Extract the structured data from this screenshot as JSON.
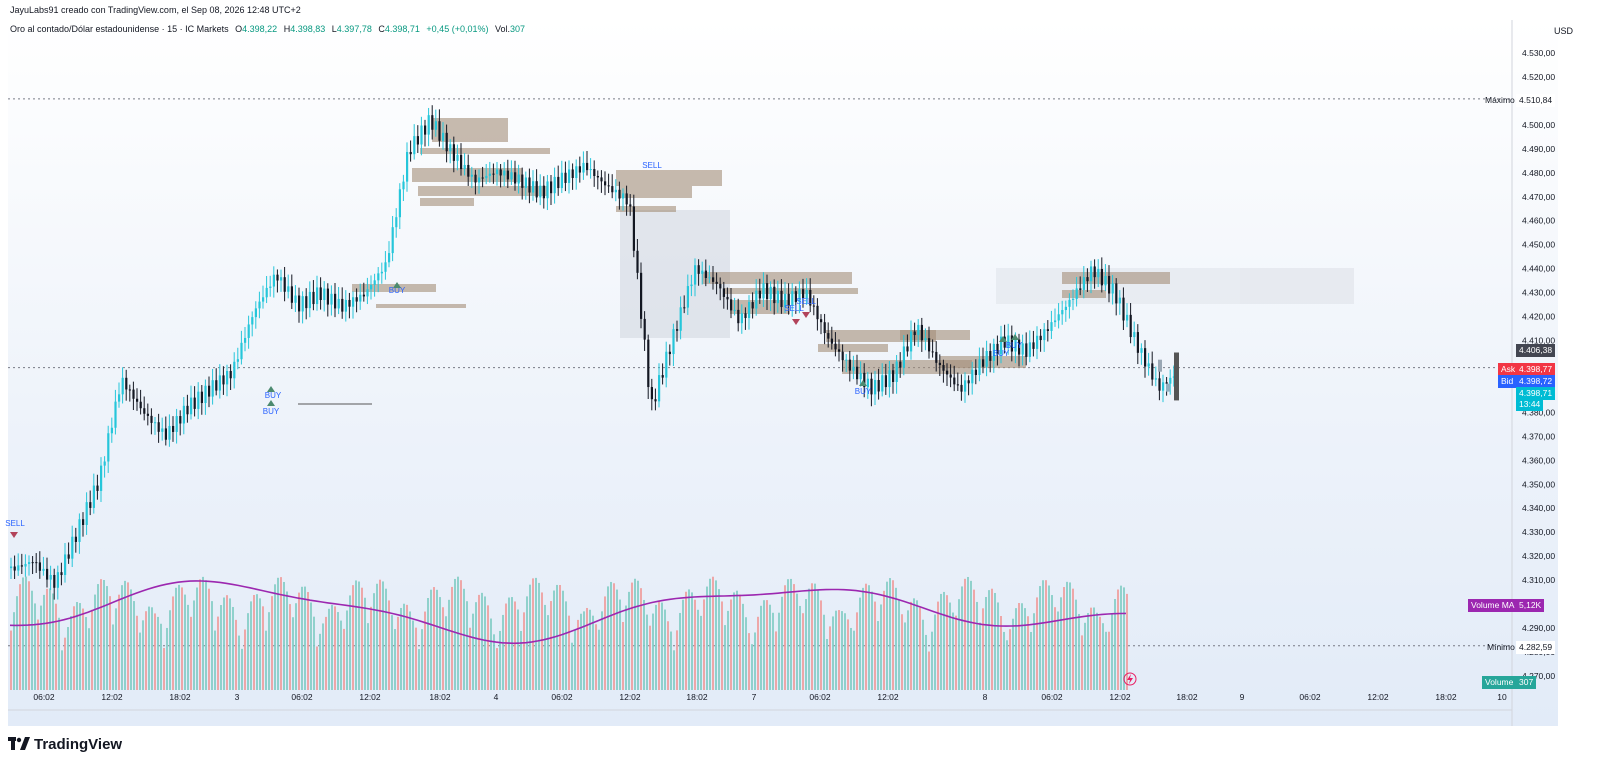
{
  "header": {
    "published": "JayuLabs91 creado con TradingView.com, el Sep 08, 2026 12:48 UTC+2"
  },
  "symbol": {
    "name": "Oro al contado/Dólar estadounidense · 15 · IC Markets",
    "o_label": "O",
    "o": "4.398,22",
    "h_label": "H",
    "h": "4.398,83",
    "l_label": "L",
    "l": "4.397,78",
    "c_label": "C",
    "c": "4.398,71",
    "change": "+0,45 (+0,01%)",
    "vol_label": "Vol.",
    "vol": "307"
  },
  "price_axis": {
    "currency": "USD",
    "ticks": [
      "4.530,00",
      "4.520,00",
      "4.500,00",
      "4.490,00",
      "4.480,00",
      "4.470,00",
      "4.460,00",
      "4.450,00",
      "4.440,00",
      "4.430,00",
      "4.420,00",
      "4.410,00",
      "4.390,00",
      "4.380,00",
      "4.370,00",
      "4.360,00",
      "4.350,00",
      "4.340,00",
      "4.330,00",
      "4.320,00",
      "4.310,00",
      "4.290,00",
      "4.280,00",
      "4.270,00"
    ],
    "max_label": "Máximo",
    "max_value": "4.510,84",
    "min_label": "Mínimo",
    "min_value": "4.282,59",
    "level_tag": "4.406,38",
    "ask_label": "Ask",
    "ask": "4.398,77",
    "bid_label": "Bid",
    "bid": "4.398,72",
    "last": "4.398,71",
    "countdown": "13:44",
    "vol_ma_label": "Volume MA",
    "vol_ma": "5,12K",
    "volume_label": "Volume",
    "volume": "307"
  },
  "time_axis": {
    "ticks": [
      "06:02",
      "12:02",
      "18:02",
      "3",
      "06:02",
      "12:02",
      "18:02",
      "4",
      "06:02",
      "12:02",
      "18:02",
      "7",
      "06:02",
      "12:02",
      "8",
      "06:02",
      "12:02",
      "18:02",
      "9",
      "06:02",
      "12:02",
      "18:02",
      "10"
    ]
  },
  "signals": {
    "sell": "SELL",
    "buy": "BUY"
  },
  "branding": {
    "name": "TradingView"
  },
  "colors": {
    "up": "#26c6da",
    "down": "#131722",
    "vol_up": "#80cbc4",
    "vol_down": "#ef9a9a",
    "ma": "#9c27b0",
    "ask": "#f23645",
    "bid": "#2962ff",
    "last": "#00bcd4"
  },
  "chart_data": {
    "type": "candlestick",
    "title": "Oro al contado/Dólar estadounidense · 15 · IC Markets",
    "ylim": [
      4265,
      4535
    ],
    "y_max_marker": 4510.84,
    "y_min_marker": 4282.59,
    "reference_price": 4398.71,
    "close_path": [
      [
        "sep-01 00:00",
        4315
      ],
      [
        "sep-01 06:00",
        4320
      ],
      [
        "sep-01 10:00",
        4310
      ],
      [
        "sep-01 14:00",
        4330
      ],
      [
        "sep-01 16:30",
        4350
      ],
      [
        "sep-01 17:30",
        4392
      ],
      [
        "sep-01 19:00",
        4380
      ],
      [
        "sep-01 22:00",
        4372
      ],
      [
        "sep-02 02:00",
        4384
      ],
      [
        "sep-02 05:00",
        4390
      ],
      [
        "sep-02 08:00",
        4395
      ],
      [
        "sep-02 11:00",
        4420
      ],
      [
        "sep-02 14:00",
        4437
      ],
      [
        "sep-02 17:00",
        4426
      ],
      [
        "sep-02 20:00",
        4432
      ],
      [
        "sep-02 23:00",
        4425
      ],
      [
        "sep-03 02:00",
        4428
      ],
      [
        "sep-03 05:00",
        4440
      ],
      [
        "sep-03 07:00",
        4488
      ],
      [
        "sep-03 09:00",
        4503
      ],
      [
        "sep-03 11:00",
        4490
      ],
      [
        "sep-03 14:00",
        4478
      ],
      [
        "sep-03 18:00",
        4480
      ],
      [
        "sep-03 22:00",
        4475
      ],
      [
        "sep-04 02:00",
        4470
      ],
      [
        "sep-04 05:00",
        4478
      ],
      [
        "sep-04 07:00",
        4485
      ],
      [
        "sep-04 09:00",
        4476
      ],
      [
        "sep-04 11:00",
        4468
      ],
      [
        "sep-04 11:30",
        4380
      ],
      [
        "sep-04 13:00",
        4410
      ],
      [
        "sep-04 15:00",
        4440
      ],
      [
        "sep-04 18:00",
        4435
      ],
      [
        "sep-04 20:00",
        4420
      ],
      [
        "sep-04 22:00",
        4432
      ],
      [
        "sep-05 00:00",
        4425
      ],
      [
        "sep-07 02:00",
        4428
      ],
      [
        "sep-07 04:00",
        4410
      ],
      [
        "sep-07 07:00",
        4400
      ],
      [
        "sep-07 09:00",
        4392
      ],
      [
        "sep-07 11:00",
        4397
      ],
      [
        "sep-07 13:00",
        4415
      ],
      [
        "sep-07 15:00",
        4398
      ],
      [
        "sep-07 17:00",
        4388
      ],
      [
        "sep-07 19:00",
        4402
      ],
      [
        "sep-07 21:00",
        4412
      ],
      [
        "sep-07 23:00",
        4407
      ],
      [
        "sep-08 01:00",
        4415
      ],
      [
        "sep-08 03:00",
        4425
      ],
      [
        "sep-08 05:00",
        4438
      ],
      [
        "sep-08 07:00",
        4430
      ],
      [
        "sep-08 08:30",
        4410
      ],
      [
        "sep-08 10:00",
        4392
      ],
      [
        "sep-08 12:00",
        4398
      ]
    ],
    "volume_ma_value": 5120
  }
}
